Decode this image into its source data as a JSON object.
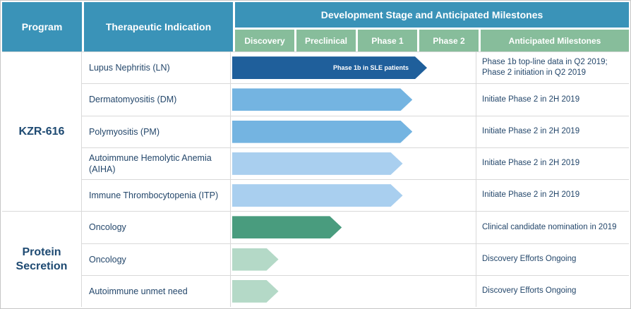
{
  "header": {
    "program": "Program",
    "indication": "Therapeutic Indication",
    "dev_title": "Development Stage and Anticipated Milestones",
    "stages": [
      "Discovery",
      "Preclinical",
      "Phase 1",
      "Phase 2"
    ],
    "milestones": "Anticipated Milestones"
  },
  "programs": [
    {
      "name": "KZR-616",
      "rowspan": 5
    },
    {
      "name": "Protein Secretion",
      "rowspan": 3
    }
  ],
  "colors": {
    "header_blue": "#3A93B8",
    "stage_header_green": "#87BD9B",
    "arrow_dark_blue": "#1F5F9B",
    "arrow_mid_blue": "#74B4E1",
    "arrow_light_blue": "#A9CFEF",
    "arrow_dark_green": "#499C7E",
    "arrow_light_green": "#B4D9C7",
    "text_navy": "#24476B",
    "gridline_gray": "#D9D9D9"
  },
  "chart_data": {
    "type": "table",
    "title": "Development Stage and Anticipated Milestones",
    "stage_columns": [
      "Discovery",
      "Preclinical",
      "Phase 1",
      "Phase 2"
    ],
    "progress_scale": "fraction of Discovery-to-Phase 2 band (0-1); stage_units = progress * 4 stages",
    "rows": [
      {
        "program": "KZR-616",
        "indication": "Lupus Nephritis (LN)",
        "progress": 0.8,
        "stage_units": 3.2,
        "bar_color": "#1F5F9B",
        "bar_label": "Phase 1b in SLE patients",
        "milestone": "Phase 1b top-line data in Q2 2019; Phase 2 initiation in Q2 2019"
      },
      {
        "program": "KZR-616",
        "indication": "Dermatomyositis (DM)",
        "progress": 0.74,
        "stage_units": 2.95,
        "bar_color": "#74B4E1",
        "bar_label": "",
        "milestone": "Initiate Phase 2 in 2H 2019"
      },
      {
        "program": "KZR-616",
        "indication": "Polymyositis (PM)",
        "progress": 0.74,
        "stage_units": 2.95,
        "bar_color": "#74B4E1",
        "bar_label": "",
        "milestone": "Initiate Phase 2 in 2H 2019"
      },
      {
        "program": "KZR-616",
        "indication": "Autoimmune Hemolytic Anemia (AIHA)",
        "progress": 0.7,
        "stage_units": 2.8,
        "bar_color": "#A9CFEF",
        "bar_label": "",
        "milestone": "Initiate Phase 2 in 2H 2019"
      },
      {
        "program": "KZR-616",
        "indication": "Immune Thrombocytopenia (ITP)",
        "progress": 0.7,
        "stage_units": 2.8,
        "bar_color": "#A9CFEF",
        "bar_label": "",
        "milestone": "Initiate Phase 2 in 2H 2019"
      },
      {
        "program": "Protein Secretion",
        "indication": "Oncology",
        "progress": 0.45,
        "stage_units": 1.8,
        "bar_color": "#499C7E",
        "bar_label": "",
        "milestone": "Clinical candidate nomination in 2019"
      },
      {
        "program": "Protein Secretion",
        "indication": "Oncology",
        "progress": 0.19,
        "stage_units": 0.75,
        "bar_color": "#B4D9C7",
        "bar_label": "",
        "milestone": "Discovery Efforts Ongoing"
      },
      {
        "program": "Protein Secretion",
        "indication": "Autoimmune unmet need",
        "progress": 0.19,
        "stage_units": 0.75,
        "bar_color": "#B4D9C7",
        "bar_label": "",
        "milestone": "Discovery Efforts Ongoing"
      }
    ]
  }
}
